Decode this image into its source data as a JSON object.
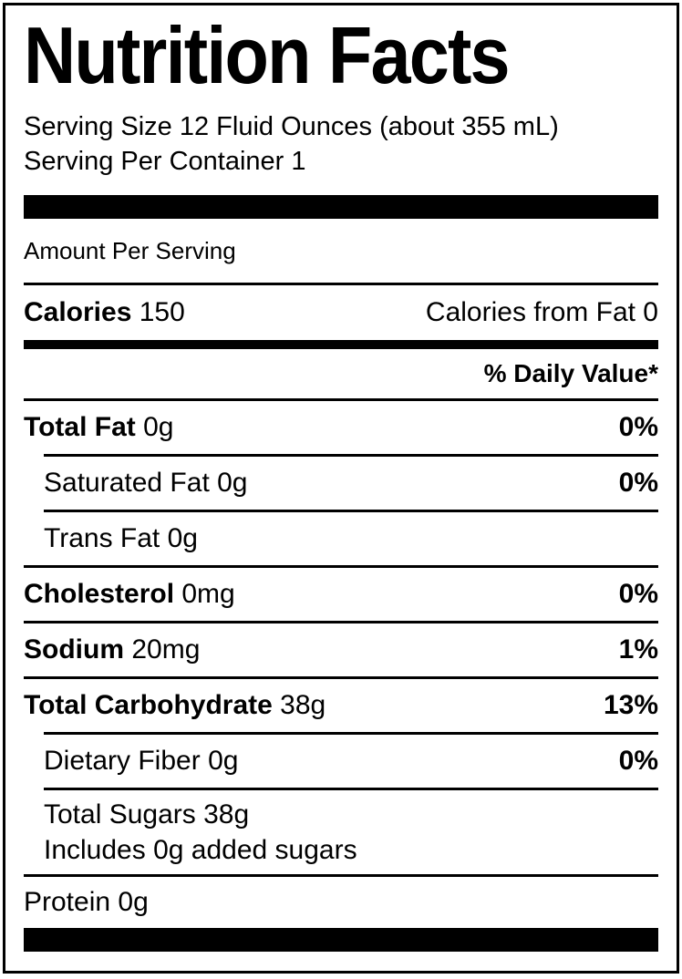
{
  "label": {
    "title": "Nutrition Facts",
    "serving_size": "Serving Size 12 Fluid Ounces (about 355 mL)",
    "servings_per_container": "Serving Per Container 1",
    "amount_per_serving": "Amount Per Serving",
    "calories": {
      "name": "Calories",
      "value": "150",
      "from_fat": "Calories from Fat 0"
    },
    "daily_value_header": "% Daily Value*",
    "rows": [
      {
        "name": "Total Fat",
        "amount": "0g",
        "dv": "0%"
      },
      {
        "name": "Saturated Fat",
        "amount": "0g",
        "dv": "0%"
      },
      {
        "name": "Trans Fat",
        "amount": "0g",
        "dv": ""
      },
      {
        "name": "Cholesterol",
        "amount": "0mg",
        "dv": "0%"
      },
      {
        "name": "Sodium",
        "amount": "20mg",
        "dv": "1%"
      },
      {
        "name": "Total Carbohydrate",
        "amount": "38g",
        "dv": "13%"
      },
      {
        "name": "Dietary Fiber",
        "amount": "0g",
        "dv": "0%"
      },
      {
        "name": "Total Sugars",
        "amount": "38g",
        "dv": "",
        "sub_line": "Includes 0g added sugars"
      },
      {
        "name": "Protein",
        "amount": "0g",
        "dv": ""
      }
    ]
  },
  "colors": {
    "text": "#000000",
    "background": "#ffffff",
    "rule": "#000000"
  }
}
